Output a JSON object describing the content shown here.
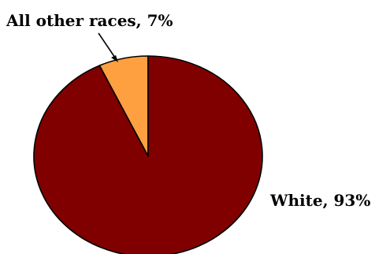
{
  "chart_data": {
    "type": "pie",
    "title": "",
    "slices": [
      {
        "label": "All other races",
        "value": 7,
        "display": "All other races, 7%",
        "color": "#FFA040"
      },
      {
        "label": "White",
        "value": 93,
        "display": "White, 93%",
        "color": "#800000"
      }
    ],
    "legend": "none",
    "border_color": "#000000"
  }
}
